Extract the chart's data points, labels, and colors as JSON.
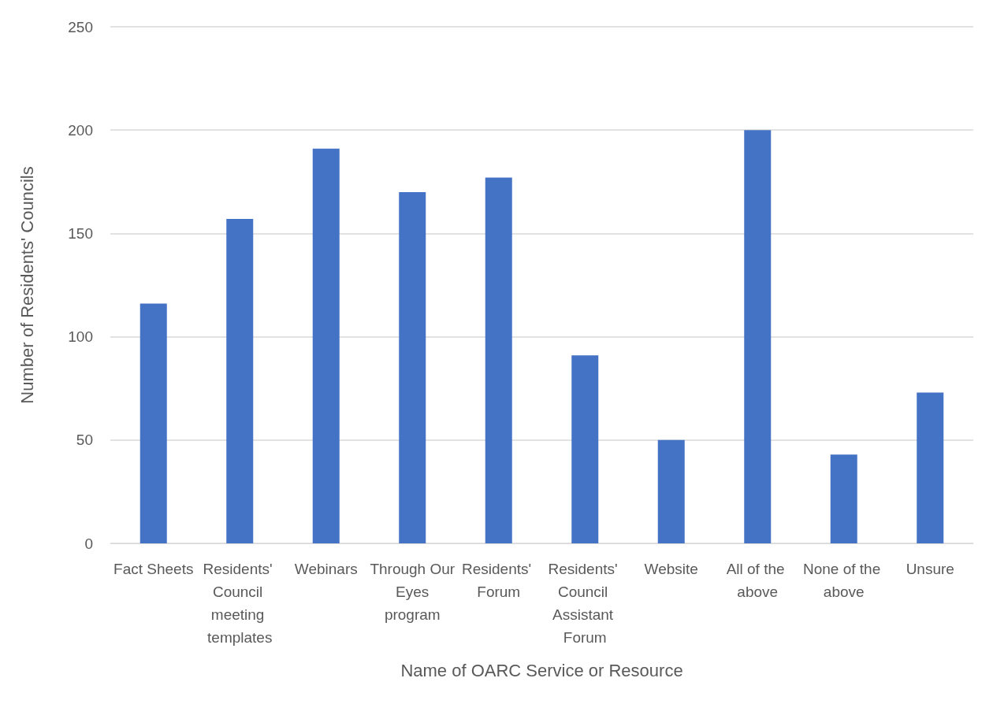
{
  "chart_data": {
    "type": "bar",
    "categories": [
      "Fact Sheets",
      "Residents' Council meeting templates",
      "Webinars",
      "Through Our Eyes program",
      "Residents' Forum",
      "Residents' Council Assistant Forum",
      "Website",
      "All of the above",
      "None of the above",
      "Unsure"
    ],
    "values": [
      116,
      157,
      191,
      170,
      177,
      91,
      50,
      200,
      43,
      73
    ],
    "color": "#4472c4",
    "xlabel": "Name of OARC Service or Resource",
    "ylabel": "Number of Residents' Councils",
    "ylim": [
      0,
      250
    ],
    "yticks": [
      0,
      50,
      100,
      150,
      200,
      250
    ],
    "grid": "y"
  }
}
